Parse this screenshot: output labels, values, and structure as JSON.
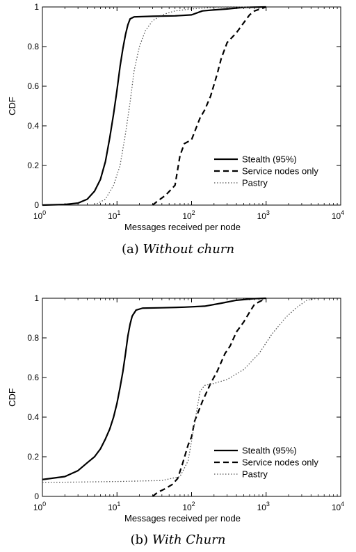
{
  "figures": [
    {
      "caption_tag": "(a)",
      "caption_text": "Without churn"
    },
    {
      "caption_tag": "(b)",
      "caption_text": "With Churn"
    }
  ],
  "chart_data": [
    {
      "type": "line",
      "xscale": "log",
      "xlim": [
        1,
        10000
      ],
      "ylim": [
        0,
        1
      ],
      "xlabel": "Messages received per node",
      "ylabel": "CDF",
      "xticks": [
        "10^0",
        "10^1",
        "10^2",
        "10^3",
        "10^4"
      ],
      "yticks": [
        "0",
        "0.2",
        "0.4",
        "0.6",
        "0.8",
        "1"
      ],
      "legend_position": "bottom-right",
      "series": [
        {
          "name": "Stealth (95%)",
          "style": "solid",
          "points": [
            [
              1,
              0
            ],
            [
              2,
              0.003
            ],
            [
              3,
              0.01
            ],
            [
              4,
              0.03
            ],
            [
              5,
              0.07
            ],
            [
              6,
              0.13
            ],
            [
              7,
              0.22
            ],
            [
              8,
              0.34
            ],
            [
              9,
              0.46
            ],
            [
              10,
              0.58
            ],
            [
              11,
              0.7
            ],
            [
              12,
              0.79
            ],
            [
              13,
              0.86
            ],
            [
              14,
              0.91
            ],
            [
              15,
              0.94
            ],
            [
              17,
              0.95
            ],
            [
              30,
              0.953
            ],
            [
              60,
              0.955
            ],
            [
              100,
              0.96
            ],
            [
              140,
              0.98
            ],
            [
              200,
              0.985
            ],
            [
              300,
              0.99
            ],
            [
              500,
              0.998
            ],
            [
              1000,
              1.0
            ]
          ]
        },
        {
          "name": "Service nodes only",
          "style": "dashed",
          "points": [
            [
              30,
              0
            ],
            [
              35,
              0.02
            ],
            [
              45,
              0.05
            ],
            [
              60,
              0.1
            ],
            [
              70,
              0.25
            ],
            [
              80,
              0.31
            ],
            [
              100,
              0.33
            ],
            [
              130,
              0.44
            ],
            [
              150,
              0.48
            ],
            [
              180,
              0.55
            ],
            [
              220,
              0.66
            ],
            [
              250,
              0.74
            ],
            [
              300,
              0.82
            ],
            [
              400,
              0.87
            ],
            [
              500,
              0.92
            ],
            [
              600,
              0.96
            ],
            [
              700,
              0.98
            ],
            [
              1000,
              1.0
            ]
          ]
        },
        {
          "name": "Pastry",
          "style": "dotted",
          "points": [
            [
              5,
              0
            ],
            [
              7,
              0.03
            ],
            [
              9,
              0.1
            ],
            [
              11,
              0.2
            ],
            [
              13,
              0.36
            ],
            [
              15,
              0.52
            ],
            [
              17,
              0.68
            ],
            [
              20,
              0.8
            ],
            [
              24,
              0.88
            ],
            [
              30,
              0.93
            ],
            [
              40,
              0.96
            ],
            [
              60,
              0.98
            ],
            [
              100,
              0.99
            ],
            [
              200,
              0.998
            ],
            [
              600,
              1.0
            ]
          ]
        }
      ]
    },
    {
      "type": "line",
      "xscale": "log",
      "xlim": [
        1,
        10000
      ],
      "ylim": [
        0,
        1
      ],
      "xlabel": "Messages received per node",
      "ylabel": "CDF",
      "xticks": [
        "10^0",
        "10^1",
        "10^2",
        "10^3",
        "10^4"
      ],
      "yticks": [
        "0",
        "0.2",
        "0.4",
        "0.6",
        "0.8",
        "1"
      ],
      "legend_position": "bottom-right",
      "series": [
        {
          "name": "Stealth (95%)",
          "style": "solid",
          "points": [
            [
              1,
              0.085
            ],
            [
              2,
              0.1
            ],
            [
              3,
              0.13
            ],
            [
              4,
              0.17
            ],
            [
              5,
              0.2
            ],
            [
              6,
              0.24
            ],
            [
              7,
              0.29
            ],
            [
              8,
              0.34
            ],
            [
              9,
              0.4
            ],
            [
              10,
              0.47
            ],
            [
              11,
              0.55
            ],
            [
              12,
              0.63
            ],
            [
              13,
              0.72
            ],
            [
              14,
              0.81
            ],
            [
              15,
              0.87
            ],
            [
              16,
              0.91
            ],
            [
              18,
              0.94
            ],
            [
              22,
              0.95
            ],
            [
              40,
              0.952
            ],
            [
              80,
              0.955
            ],
            [
              150,
              0.96
            ],
            [
              250,
              0.975
            ],
            [
              400,
              0.99
            ],
            [
              700,
              0.998
            ],
            [
              1000,
              1.0
            ]
          ]
        },
        {
          "name": "Service nodes only",
          "style": "dashed",
          "points": [
            [
              30,
              0
            ],
            [
              35,
              0.02
            ],
            [
              45,
              0.04
            ],
            [
              55,
              0.06
            ],
            [
              65,
              0.09
            ],
            [
              75,
              0.16
            ],
            [
              90,
              0.26
            ],
            [
              100,
              0.3
            ],
            [
              110,
              0.38
            ],
            [
              140,
              0.48
            ],
            [
              180,
              0.57
            ],
            [
              220,
              0.63
            ],
            [
              280,
              0.72
            ],
            [
              330,
              0.76
            ],
            [
              400,
              0.83
            ],
            [
              500,
              0.88
            ],
            [
              600,
              0.93
            ],
            [
              700,
              0.97
            ],
            [
              1000,
              1.0
            ]
          ]
        },
        {
          "name": "Pastry",
          "style": "dotted",
          "points": [
            [
              1,
              0.07
            ],
            [
              10,
              0.075
            ],
            [
              40,
              0.08
            ],
            [
              70,
              0.1
            ],
            [
              90,
              0.18
            ],
            [
              110,
              0.37
            ],
            [
              130,
              0.53
            ],
            [
              150,
              0.56
            ],
            [
              200,
              0.57
            ],
            [
              300,
              0.59
            ],
            [
              500,
              0.64
            ],
            [
              800,
              0.72
            ],
            [
              1200,
              0.82
            ],
            [
              1800,
              0.9
            ],
            [
              2500,
              0.95
            ],
            [
              3500,
              0.99
            ],
            [
              5000,
              1.0
            ]
          ]
        }
      ]
    }
  ]
}
